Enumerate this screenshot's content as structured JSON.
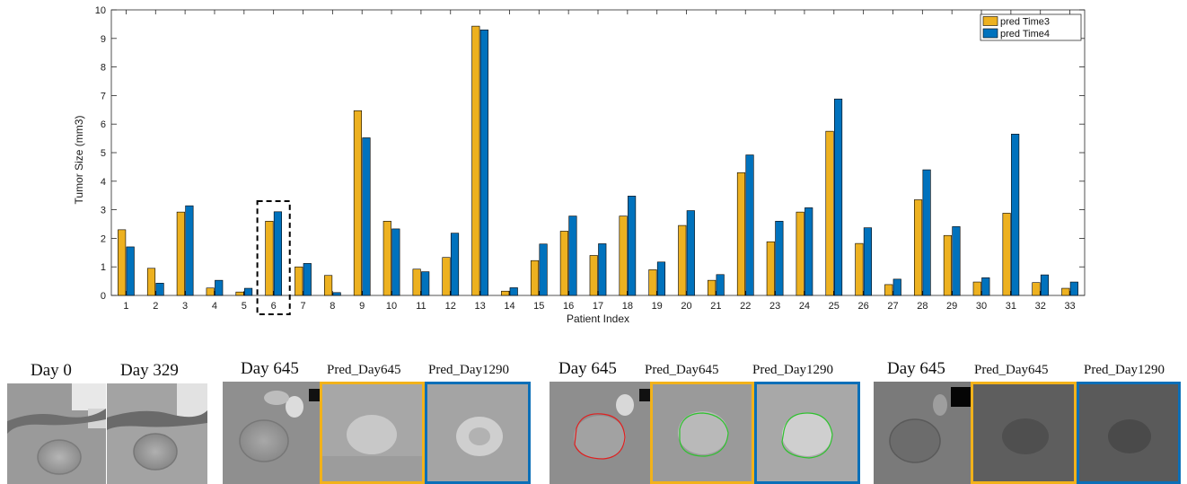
{
  "colors": {
    "series1": "#EDB120",
    "series2": "#0072BD"
  },
  "chart_data": {
    "type": "bar",
    "title": "",
    "xlabel": "Patient Index",
    "ylabel": "Tumor Size (mm3)",
    "ylim": [
      0,
      10
    ],
    "yticks": [
      0,
      1,
      2,
      3,
      4,
      5,
      6,
      7,
      8,
      9,
      10
    ],
    "grid": false,
    "legend_position": "top-right",
    "highlighted_category": "6",
    "categories": [
      "1",
      "2",
      "3",
      "4",
      "5",
      "6",
      "7",
      "8",
      "9",
      "10",
      "11",
      "12",
      "13",
      "14",
      "15",
      "16",
      "17",
      "18",
      "19",
      "20",
      "21",
      "22",
      "23",
      "24",
      "25",
      "26",
      "27",
      "28",
      "29",
      "30",
      "31",
      "32",
      "33"
    ],
    "series": [
      {
        "name": "pred Time3",
        "values": [
          2.3,
          0.95,
          2.92,
          0.26,
          0.12,
          2.6,
          1.0,
          0.7,
          6.47,
          2.6,
          0.92,
          1.33,
          9.43,
          0.15,
          1.22,
          2.25,
          1.4,
          2.78,
          0.9,
          2.45,
          0.53,
          4.3,
          1.88,
          2.92,
          5.75,
          1.82,
          0.38,
          3.35,
          2.1,
          0.47,
          2.88,
          0.45,
          0.25
        ]
      },
      {
        "name": "pred Time4",
        "values": [
          1.7,
          0.43,
          3.14,
          0.53,
          0.25,
          2.93,
          1.12,
          0.1,
          5.52,
          2.33,
          0.83,
          2.18,
          9.3,
          0.27,
          1.8,
          2.78,
          1.81,
          3.48,
          1.17,
          2.97,
          0.73,
          4.92,
          2.6,
          3.07,
          6.88,
          2.37,
          0.57,
          4.4,
          2.41,
          0.62,
          5.65,
          0.72,
          0.47
        ]
      }
    ]
  },
  "panels": {
    "group1": {
      "day0_label": "Day 0",
      "day329_label": "Day 329"
    },
    "group2": {
      "day645_label": "Day 645",
      "pred645_label": "Pred_Day645",
      "pred1290_label": "Pred_Day1290"
    },
    "group3": {
      "day645_label": "Day 645",
      "pred645_label": "Pred_Day645",
      "pred1290_label": "Pred_Day1290"
    },
    "group4": {
      "day645_label": "Day 645",
      "pred645_label": "Pred_Day645",
      "pred1290_label": "Pred_Day1290"
    }
  }
}
